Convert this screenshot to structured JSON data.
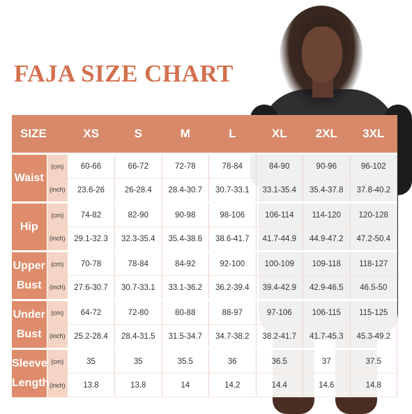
{
  "title": "FAJA SIZE CHART",
  "header": {
    "size_label": "SIZE",
    "sizes": [
      "XS",
      "S",
      "M",
      "L",
      "XL",
      "2XL",
      "3XL"
    ]
  },
  "units": {
    "cm": "(cm)",
    "inch": "(inch)"
  },
  "rows": [
    {
      "label_lines": [
        "Waist"
      ],
      "cm": [
        "60-66",
        "66-72",
        "72-78",
        "78-84",
        "84-90",
        "90-96",
        "96-102"
      ],
      "inch": [
        "23.6-26",
        "26-28.4",
        "28.4-30.7",
        "30.7-33.1",
        "33.1-35.4",
        "35.4-37.8",
        "37.8-40.2"
      ]
    },
    {
      "label_lines": [
        "Hip"
      ],
      "cm": [
        "74-82",
        "82-90",
        "90-98",
        "98-106",
        "106-114",
        "114-120",
        "120-128"
      ],
      "inch": [
        "29.1-32.3",
        "32.3-35.4",
        "35.4-38.6",
        "38.6-41.7",
        "41.7-44.9",
        "44.9-47.2",
        "47.2-50.4"
      ]
    },
    {
      "label_lines": [
        "Upper",
        "Bust"
      ],
      "cm": [
        "70-78",
        "78-84",
        "84-92",
        "92-100",
        "100-109",
        "109-118",
        "118-127"
      ],
      "inch": [
        "27.6-30.7",
        "30.7-33.1",
        "33.1-36.2",
        "36.2-39.4",
        "39.4-42.9",
        "42.9-46.5",
        "46.5-50"
      ]
    },
    {
      "label_lines": [
        "Under",
        "Bust"
      ],
      "cm": [
        "64-72",
        "72-80",
        "80-88",
        "88-97",
        "97-106",
        "106-115",
        "115-125"
      ],
      "inch": [
        "25.2-28.4",
        "28.4-31.5",
        "31.5-34.7",
        "34.7-38.2",
        "38.2-41.7",
        "41.7-45.3",
        "45.3-49.2"
      ]
    },
    {
      "label_lines": [
        "Sleeve",
        "Length"
      ],
      "cm": [
        "35",
        "35",
        "35.5",
        "36",
        "36.5",
        "37",
        "37.5"
      ],
      "inch": [
        "13.8",
        "13.8",
        "14",
        "14.2",
        "14.4",
        "14.6",
        "14.8"
      ]
    }
  ],
  "colors": {
    "title": "#d2704e",
    "header_bg": "#d7896a",
    "group_bg": "#de8c6b",
    "unit_bg": "#f4d4c4"
  }
}
